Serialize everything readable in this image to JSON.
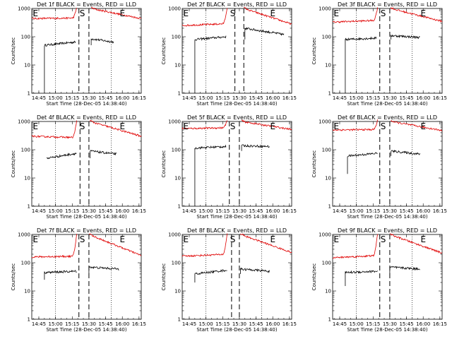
{
  "figure": {
    "xlabel": "Start Time (28-Dec-05 14:38:40)",
    "ylabel": "Counts/sec"
  },
  "chart_data": [
    {
      "type": "line",
      "title": "Det 1f BLACK = Events, RED = LLD",
      "xlabel": "Start Time (28-Dec-05 14:38:40)",
      "ylabel": "Counts/sec",
      "yscale": "log",
      "ylim": [
        1,
        1000
      ],
      "xlim": [
        "14:38:40",
        "16:17:00"
      ],
      "x_tick_labels": [
        "14:45",
        "15:00",
        "15:15",
        "15:30",
        "15:45",
        "16:00",
        "16:15"
      ],
      "y_tick_labels": [
        "1",
        "10",
        "100",
        "1000"
      ],
      "markers": [
        {
          "label": "E",
          "x": "14:39"
        },
        {
          "label": "S",
          "x": "15:21"
        },
        {
          "label": "E",
          "x": "15:57"
        }
      ],
      "dashed_lines": [
        "15:21",
        "15:30"
      ],
      "dotted_lines": [
        "15:00",
        "15:50"
      ],
      "series": [
        {
          "color": "black",
          "segments": [
            {
              "x": [
                "14:50",
                "15:18"
              ],
              "y": [
                50,
                65
              ],
              "drop_to": 1
            },
            {
              "x": [
                "15:32",
                "15:52"
              ],
              "y": [
                85,
                65
              ],
              "drop_to": 50
            }
          ]
        },
        {
          "color": "red",
          "segments": [
            {
              "x": [
                "14:38:40",
                "15:19"
              ],
              "y": [
                440,
                460
              ],
              "peak": 1100
            },
            {
              "x": [
                "15:32",
                "16:17"
              ],
              "y": [
                1000,
                440
              ]
            }
          ]
        }
      ]
    },
    {
      "type": "line",
      "title": "Det 2f BLACK = Events, RED = LLD",
      "xlabel": "Start Time (28-Dec-05 14:38:40)",
      "ylabel": "Counts/sec",
      "yscale": "log",
      "ylim": [
        1,
        1000
      ],
      "xlim": [
        "14:38:40",
        "16:17:00"
      ],
      "x_tick_labels": [
        "14:45",
        "15:00",
        "15:15",
        "15:30",
        "15:45",
        "16:00",
        "16:15"
      ],
      "y_tick_labels": [
        "1",
        "10",
        "100",
        "1000"
      ],
      "markers": [
        {
          "label": "E",
          "x": "14:39"
        },
        {
          "label": "S",
          "x": "15:21"
        },
        {
          "label": "E",
          "x": "15:57"
        }
      ],
      "dashed_lines": [
        "15:26",
        "15:34"
      ],
      "dotted_lines": [
        "15:00",
        "15:50"
      ],
      "series": [
        {
          "color": "black",
          "segments": [
            {
              "x": [
                "14:50",
                "15:18"
              ],
              "y": [
                80,
                100
              ],
              "drop_to": 1
            },
            {
              "x": [
                "15:35",
                "16:10"
              ],
              "y": [
                200,
                120
              ],
              "drop_to": 80
            }
          ]
        },
        {
          "color": "red",
          "segments": [
            {
              "x": [
                "14:38:40",
                "15:19"
              ],
              "y": [
                250,
                290
              ],
              "peak": 1100
            },
            {
              "x": [
                "15:34",
                "16:17"
              ],
              "y": [
                1000,
                280
              ]
            }
          ]
        }
      ]
    },
    {
      "type": "line",
      "title": "Det 3f BLACK = Events, RED = LLD",
      "xlabel": "Start Time (28-Dec-05 14:38:40)",
      "ylabel": "Counts/sec",
      "yscale": "log",
      "ylim": [
        1,
        1000
      ],
      "xlim": [
        "14:38:40",
        "16:17:00"
      ],
      "x_tick_labels": [
        "14:45",
        "15:00",
        "15:15",
        "15:30",
        "15:45",
        "16:00",
        "16:15"
      ],
      "y_tick_labels": [
        "1",
        "10",
        "100",
        "1000"
      ],
      "markers": [
        {
          "label": "E",
          "x": "14:39"
        },
        {
          "label": "S",
          "x": "15:21"
        },
        {
          "label": "E",
          "x": "15:57"
        }
      ],
      "dashed_lines": [
        "15:21",
        "15:30"
      ],
      "dotted_lines": [
        "15:00",
        "15:50"
      ],
      "series": [
        {
          "color": "black",
          "segments": [
            {
              "x": [
                "14:50",
                "15:18"
              ],
              "y": [
                80,
                90
              ],
              "drop_to": 1
            },
            {
              "x": [
                "15:31",
                "15:57"
              ],
              "y": [
                110,
                95
              ],
              "drop_to": 80
            }
          ]
        },
        {
          "color": "red",
          "segments": [
            {
              "x": [
                "14:38:40",
                "15:19"
              ],
              "y": [
                330,
                380
              ],
              "peak": 1100
            },
            {
              "x": [
                "15:31",
                "16:17"
              ],
              "y": [
                1000,
                350
              ]
            }
          ]
        }
      ]
    },
    {
      "type": "line",
      "title": "Det 4f BLACK = Events, RED = LLD",
      "xlabel": "Start Time (28-Dec-05 14:38:40)",
      "ylabel": "Counts/sec",
      "yscale": "log",
      "ylim": [
        1,
        1000
      ],
      "xlim": [
        "14:38:40",
        "16:17:00"
      ],
      "x_tick_labels": [
        "14:45",
        "15:00",
        "15:15",
        "15:30",
        "15:45",
        "16:00",
        "16:15"
      ],
      "y_tick_labels": [
        "1",
        "10",
        "100",
        "1000"
      ],
      "markers": [
        {
          "label": "E",
          "x": "14:39"
        },
        {
          "label": "S",
          "x": "15:21"
        },
        {
          "label": "E",
          "x": "15:57"
        }
      ],
      "dashed_lines": [
        "15:22",
        "15:30"
      ],
      "dotted_lines": [
        "15:00",
        "15:50"
      ],
      "series": [
        {
          "color": "black",
          "segments": [
            {
              "x": [
                "14:52",
                "15:19"
              ],
              "y": [
                50,
                75
              ]
            },
            {
              "x": [
                "15:31",
                "15:55"
              ],
              "y": [
                90,
                70
              ],
              "drop_to": 50
            }
          ]
        },
        {
          "color": "red",
          "segments": [
            {
              "x": [
                "14:38:40",
                "15:19"
              ],
              "y": [
                300,
                270
              ],
              "peak": 1100
            },
            {
              "x": [
                "15:31",
                "16:17"
              ],
              "y": [
                1000,
                300
              ]
            }
          ]
        }
      ]
    },
    {
      "type": "line",
      "title": "Det 5f BLACK = Events, RED = LLD",
      "xlabel": "Start Time (28-Dec-05 14:38:40)",
      "ylabel": "Counts/sec",
      "yscale": "log",
      "ylim": [
        1,
        1000
      ],
      "xlim": [
        "14:38:40",
        "16:17:00"
      ],
      "x_tick_labels": [
        "14:45",
        "15:00",
        "15:15",
        "15:30",
        "15:45",
        "16:00",
        "16:15"
      ],
      "y_tick_labels": [
        "1",
        "10",
        "100",
        "1000"
      ],
      "markers": [
        {
          "label": "E",
          "x": "14:39"
        },
        {
          "label": "S",
          "x": "15:21"
        },
        {
          "label": "E",
          "x": "15:57"
        }
      ],
      "dashed_lines": [
        "15:21",
        "15:30"
      ],
      "dotted_lines": [
        "15:00",
        "15:50"
      ],
      "series": [
        {
          "color": "black",
          "segments": [
            {
              "x": [
                "14:50",
                "15:18"
              ],
              "y": [
                115,
                130
              ],
              "drop_to": 1
            },
            {
              "x": [
                "15:32",
                "15:57"
              ],
              "y": [
                140,
                130
              ],
              "drop_to": 90
            }
          ]
        },
        {
          "color": "red",
          "segments": [
            {
              "x": [
                "14:38:40",
                "15:19"
              ],
              "y": [
                560,
                600
              ],
              "peak": 1100
            },
            {
              "x": [
                "15:32",
                "16:17"
              ],
              "y": [
                1000,
                520
              ]
            }
          ]
        }
      ]
    },
    {
      "type": "line",
      "title": "Det 6f BLACK = Events, RED = LLD",
      "xlabel": "Start Time (28-Dec-05 14:38:40)",
      "ylabel": "Counts/sec",
      "yscale": "log",
      "ylim": [
        1,
        1000
      ],
      "xlim": [
        "14:38:40",
        "16:17:00"
      ],
      "x_tick_labels": [
        "14:45",
        "15:00",
        "15:15",
        "15:30",
        "15:45",
        "16:00",
        "16:15"
      ],
      "y_tick_labels": [
        "1",
        "10",
        "100",
        "1000"
      ],
      "markers": [
        {
          "label": "E",
          "x": "14:39"
        },
        {
          "label": "S",
          "x": "15:21"
        },
        {
          "label": "E",
          "x": "15:57"
        }
      ],
      "dashed_lines": [
        "15:21",
        "15:30"
      ],
      "dotted_lines": [
        "15:00",
        "15:50"
      ],
      "series": [
        {
          "color": "black",
          "segments": [
            {
              "x": [
                "14:52",
                "15:19"
              ],
              "y": [
                60,
                75
              ],
              "drop_to": 14
            },
            {
              "x": [
                "15:31",
                "15:57"
              ],
              "y": [
                90,
                70
              ],
              "drop_to": 60
            }
          ]
        },
        {
          "color": "red",
          "segments": [
            {
              "x": [
                "14:38:40",
                "15:19"
              ],
              "y": [
                500,
                520
              ],
              "peak": 1100
            },
            {
              "x": [
                "15:31",
                "16:17"
              ],
              "y": [
                1000,
                480
              ]
            }
          ]
        }
      ]
    },
    {
      "type": "line",
      "title": "Det 7f BLACK = Events, RED = LLD",
      "xlabel": "Start Time (28-Dec-05 14:38:40)",
      "ylabel": "Counts/sec",
      "yscale": "log",
      "ylim": [
        1,
        1000
      ],
      "xlim": [
        "14:38:40",
        "16:17:00"
      ],
      "x_tick_labels": [
        "14:45",
        "15:00",
        "15:15",
        "15:30",
        "15:45",
        "16:00",
        "16:15"
      ],
      "y_tick_labels": [
        "1",
        "10",
        "100",
        "1000"
      ],
      "markers": [
        {
          "label": "E",
          "x": "14:39"
        },
        {
          "label": "S",
          "x": "15:21"
        },
        {
          "label": "E",
          "x": "15:57"
        }
      ],
      "dashed_lines": [
        "15:21",
        "15:30"
      ],
      "dotted_lines": [
        "15:00",
        "15:50"
      ],
      "series": [
        {
          "color": "black",
          "segments": [
            {
              "x": [
                "14:50",
                "15:19"
              ],
              "y": [
                45,
                50
              ],
              "drop_to": 25
            },
            {
              "x": [
                "15:30",
                "15:57"
              ],
              "y": [
                70,
                60
              ],
              "drop_to": 40
            }
          ]
        },
        {
          "color": "red",
          "segments": [
            {
              "x": [
                "14:38:40",
                "15:19"
              ],
              "y": [
                160,
                170
              ],
              "peak": 1100
            },
            {
              "x": [
                "15:30",
                "16:17"
              ],
              "y": [
                1000,
                180
              ]
            }
          ]
        }
      ]
    },
    {
      "type": "line",
      "title": "Det 8f BLACK = Events, RED = LLD",
      "xlabel": "Start Time (28-Dec-05 14:38:40)",
      "ylabel": "Counts/sec",
      "yscale": "log",
      "ylim": [
        1,
        1000
      ],
      "xlim": [
        "14:38:40",
        "16:17:00"
      ],
      "x_tick_labels": [
        "14:45",
        "15:00",
        "15:15",
        "15:30",
        "15:45",
        "16:00",
        "16:15"
      ],
      "y_tick_labels": [
        "1",
        "10",
        "100",
        "1000"
      ],
      "markers": [
        {
          "label": "E",
          "x": "14:39"
        },
        {
          "label": "S",
          "x": "15:21"
        },
        {
          "label": "E",
          "x": "15:57"
        }
      ],
      "dashed_lines": [
        "15:23",
        "15:30"
      ],
      "dotted_lines": [
        "15:00",
        "15:50"
      ],
      "series": [
        {
          "color": "black",
          "segments": [
            {
              "x": [
                "14:50",
                "15:19"
              ],
              "y": [
                40,
                55
              ],
              "drop_to": 20
            },
            {
              "x": [
                "15:31",
                "15:57"
              ],
              "y": [
                60,
                50
              ],
              "drop_to": 40
            }
          ]
        },
        {
          "color": "red",
          "segments": [
            {
              "x": [
                "14:38:40",
                "15:19"
              ],
              "y": [
                170,
                200
              ],
              "peak": 1100
            },
            {
              "x": [
                "15:31",
                "16:17"
              ],
              "y": [
                1000,
                230
              ]
            }
          ]
        }
      ]
    },
    {
      "type": "line",
      "title": "Det 9f BLACK = Events, RED = LLD",
      "xlabel": "Start Time (28-Dec-05 14:38:40)",
      "ylabel": "Counts/sec",
      "yscale": "log",
      "ylim": [
        1,
        1000
      ],
      "xlim": [
        "14:38:40",
        "16:17:00"
      ],
      "x_tick_labels": [
        "14:45",
        "15:00",
        "15:15",
        "15:30",
        "15:45",
        "16:00",
        "16:15"
      ],
      "y_tick_labels": [
        "1",
        "10",
        "100",
        "1000"
      ],
      "markers": [
        {
          "label": "E",
          "x": "14:39"
        },
        {
          "label": "S",
          "x": "15:21"
        },
        {
          "label": "E",
          "x": "15:57"
        }
      ],
      "dashed_lines": [
        "15:21",
        "15:30"
      ],
      "dotted_lines": [
        "15:00",
        "15:50"
      ],
      "series": [
        {
          "color": "black",
          "segments": [
            {
              "x": [
                "14:50",
                "15:19"
              ],
              "y": [
                45,
                50
              ],
              "drop_to": 15
            },
            {
              "x": [
                "15:30",
                "15:57"
              ],
              "y": [
                70,
                60
              ],
              "drop_to": 40
            }
          ]
        },
        {
          "color": "red",
          "segments": [
            {
              "x": [
                "14:38:40",
                "15:19"
              ],
              "y": [
                150,
                180
              ],
              "peak": 1100
            },
            {
              "x": [
                "15:30",
                "16:17"
              ],
              "y": [
                1000,
                220
              ]
            }
          ]
        }
      ]
    }
  ]
}
